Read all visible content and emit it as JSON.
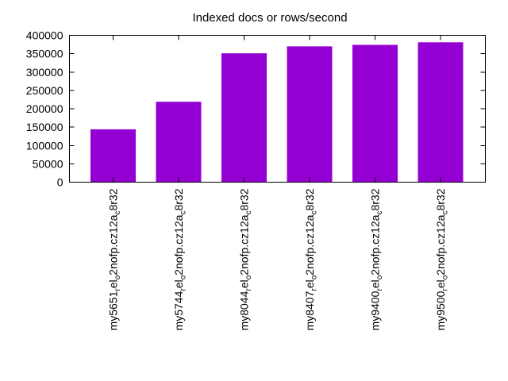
{
  "title": "Indexed docs or rows/second",
  "chart_data": {
    "type": "bar",
    "title": "Indexed docs or rows/second",
    "xlabel": "",
    "ylabel": "",
    "ylim": [
      0,
      400000
    ],
    "yticks": [
      0,
      50000,
      100000,
      150000,
      200000,
      250000,
      300000,
      350000,
      400000
    ],
    "grid": false,
    "legend": false,
    "bar_color": "#9400d3",
    "axis_color": "#000000",
    "background_color": "#ffffff",
    "x_labels_rotated_degrees": 90,
    "bars": [
      {
        "value": 144000,
        "label_parts": [
          {
            "text": "my5651",
            "sub": false
          },
          {
            "text": "r",
            "sub": true
          },
          {
            "text": "el",
            "sub": false
          },
          {
            "text": "o",
            "sub": true
          },
          {
            "text": "2nofp.cz12a",
            "sub": false
          },
          {
            "text": "c",
            "sub": true
          },
          {
            "text": "8r32",
            "sub": false
          }
        ]
      },
      {
        "value": 219000,
        "label_parts": [
          {
            "text": "my5744",
            "sub": false
          },
          {
            "text": "r",
            "sub": true
          },
          {
            "text": "el",
            "sub": false
          },
          {
            "text": "o",
            "sub": true
          },
          {
            "text": "2nofp.cz12a",
            "sub": false
          },
          {
            "text": "c",
            "sub": true
          },
          {
            "text": "8r32",
            "sub": false
          }
        ]
      },
      {
        "value": 351000,
        "label_parts": [
          {
            "text": "my8044",
            "sub": false
          },
          {
            "text": "r",
            "sub": true
          },
          {
            "text": "el",
            "sub": false
          },
          {
            "text": "o",
            "sub": true
          },
          {
            "text": "2nofp.cz12a",
            "sub": false
          },
          {
            "text": "c",
            "sub": true
          },
          {
            "text": "8r32",
            "sub": false
          }
        ]
      },
      {
        "value": 370000,
        "label_parts": [
          {
            "text": "my8407",
            "sub": false
          },
          {
            "text": "r",
            "sub": true
          },
          {
            "text": "el",
            "sub": false
          },
          {
            "text": "o",
            "sub": true
          },
          {
            "text": "2nofp.cz12a",
            "sub": false
          },
          {
            "text": "c",
            "sub": true
          },
          {
            "text": "8r32",
            "sub": false
          }
        ]
      },
      {
        "value": 374000,
        "label_parts": [
          {
            "text": "my9400",
            "sub": false
          },
          {
            "text": "r",
            "sub": true
          },
          {
            "text": "el",
            "sub": false
          },
          {
            "text": "o",
            "sub": true
          },
          {
            "text": "2nofp.cz12a",
            "sub": false
          },
          {
            "text": "c",
            "sub": true
          },
          {
            "text": "8r32",
            "sub": false
          }
        ]
      },
      {
        "value": 381000,
        "label_parts": [
          {
            "text": "my9500",
            "sub": false
          },
          {
            "text": "r",
            "sub": true
          },
          {
            "text": "el",
            "sub": false
          },
          {
            "text": "o",
            "sub": true
          },
          {
            "text": "2nofp.cz12a",
            "sub": false
          },
          {
            "text": "c",
            "sub": true
          },
          {
            "text": "8r32",
            "sub": false
          }
        ]
      }
    ]
  }
}
